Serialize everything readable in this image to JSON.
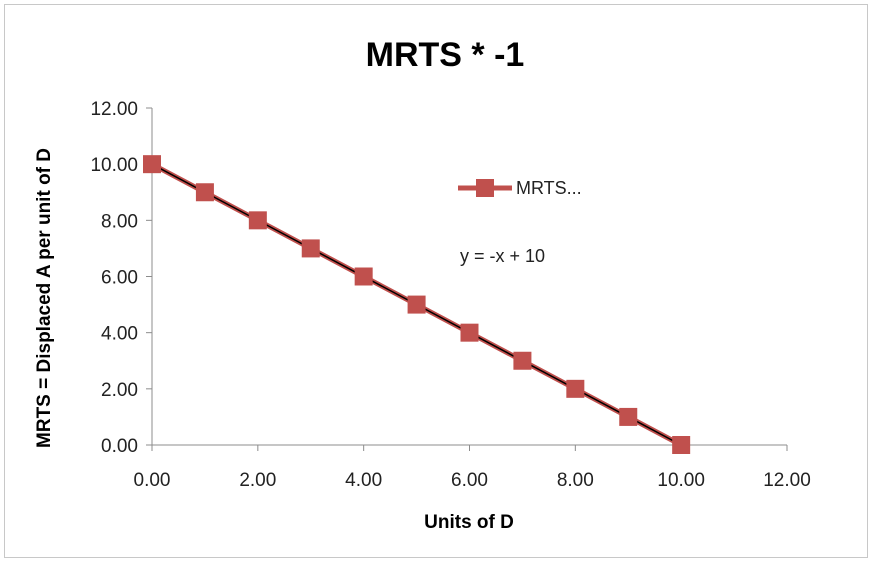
{
  "chart_data": {
    "type": "line",
    "title": "MRTS * -1",
    "xlabel": "Units of D",
    "ylabel": "MRTS = Displaced A per unit of D",
    "xlim": [
      0,
      12
    ],
    "ylim": [
      0,
      12
    ],
    "x_ticks": [
      "0.00",
      "2.00",
      "4.00",
      "6.00",
      "8.00",
      "10.00",
      "12.00"
    ],
    "y_ticks": [
      "0.00",
      "2.00",
      "4.00",
      "6.00",
      "8.00",
      "10.00",
      "12.00"
    ],
    "grid": false,
    "legend_position": "right",
    "series": [
      {
        "name": "MRTS...",
        "color": "#c0504d",
        "marker": "square",
        "x": [
          0,
          1,
          2,
          3,
          4,
          5,
          6,
          7,
          8,
          9,
          10
        ],
        "y": [
          10,
          9,
          8,
          7,
          6,
          5,
          4,
          3,
          2,
          1,
          0
        ]
      }
    ],
    "trendline": {
      "color": "#000000",
      "equation": "y = -x + 10"
    }
  }
}
